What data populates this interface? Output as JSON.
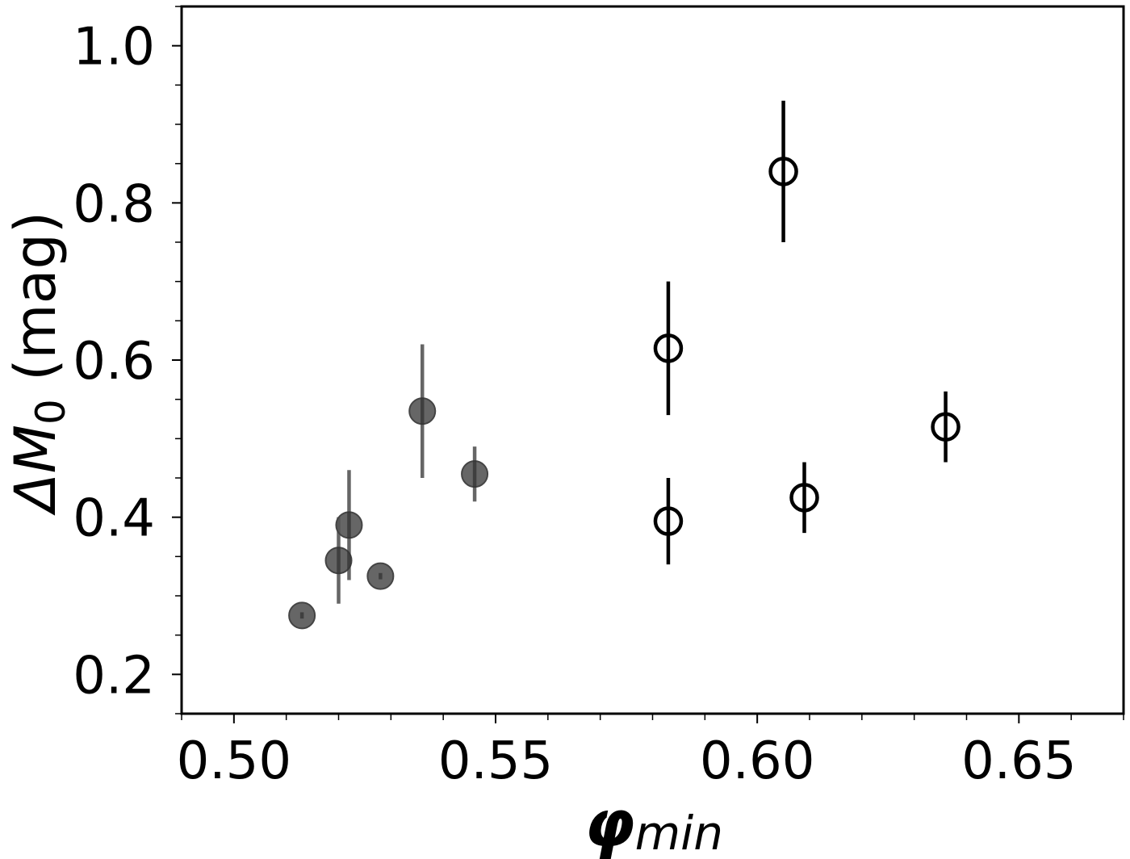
{
  "chart_data": {
    "type": "scatter",
    "title": "",
    "xlabel": "φmin",
    "xlabel_parts": {
      "base": "φ",
      "sub": "min"
    },
    "ylabel": "ΔM0 (mag)",
    "ylabel_parts": {
      "prefix": "ΔM",
      "sub": "0",
      "suffix": " (mag)"
    },
    "xlim": [
      0.49,
      0.67
    ],
    "ylim": [
      0.15,
      1.05
    ],
    "xticks": [
      0.5,
      0.55,
      0.6,
      0.65
    ],
    "xtick_labels": [
      "0.50",
      "0.55",
      "0.60",
      "0.65"
    ],
    "yticks": [
      0.2,
      0.4,
      0.6,
      0.8,
      1.0
    ],
    "ytick_labels": [
      "0.2",
      "0.4",
      "0.6",
      "0.8",
      "1.0"
    ],
    "grid": false,
    "series": [
      {
        "name": "filled",
        "marker": "filled-circle",
        "color": "#555555",
        "points": [
          {
            "x": 0.513,
            "y": 0.275,
            "yerr": 0.004
          },
          {
            "x": 0.52,
            "y": 0.345,
            "yerr": 0.055
          },
          {
            "x": 0.522,
            "y": 0.39,
            "yerr": 0.07
          },
          {
            "x": 0.528,
            "y": 0.325,
            "yerr": 0.004
          },
          {
            "x": 0.536,
            "y": 0.535,
            "yerr": 0.085
          },
          {
            "x": 0.546,
            "y": 0.455,
            "yerr": 0.035
          }
        ]
      },
      {
        "name": "open",
        "marker": "open-circle",
        "color": "#000000",
        "points": [
          {
            "x": 0.583,
            "y": 0.615,
            "yerr": 0.085
          },
          {
            "x": 0.583,
            "y": 0.395,
            "yerr": 0.055
          },
          {
            "x": 0.605,
            "y": 0.84,
            "yerr": 0.09
          },
          {
            "x": 0.609,
            "y": 0.425,
            "yerr": 0.045
          },
          {
            "x": 0.636,
            "y": 0.515,
            "yerr": 0.045
          }
        ]
      }
    ]
  }
}
